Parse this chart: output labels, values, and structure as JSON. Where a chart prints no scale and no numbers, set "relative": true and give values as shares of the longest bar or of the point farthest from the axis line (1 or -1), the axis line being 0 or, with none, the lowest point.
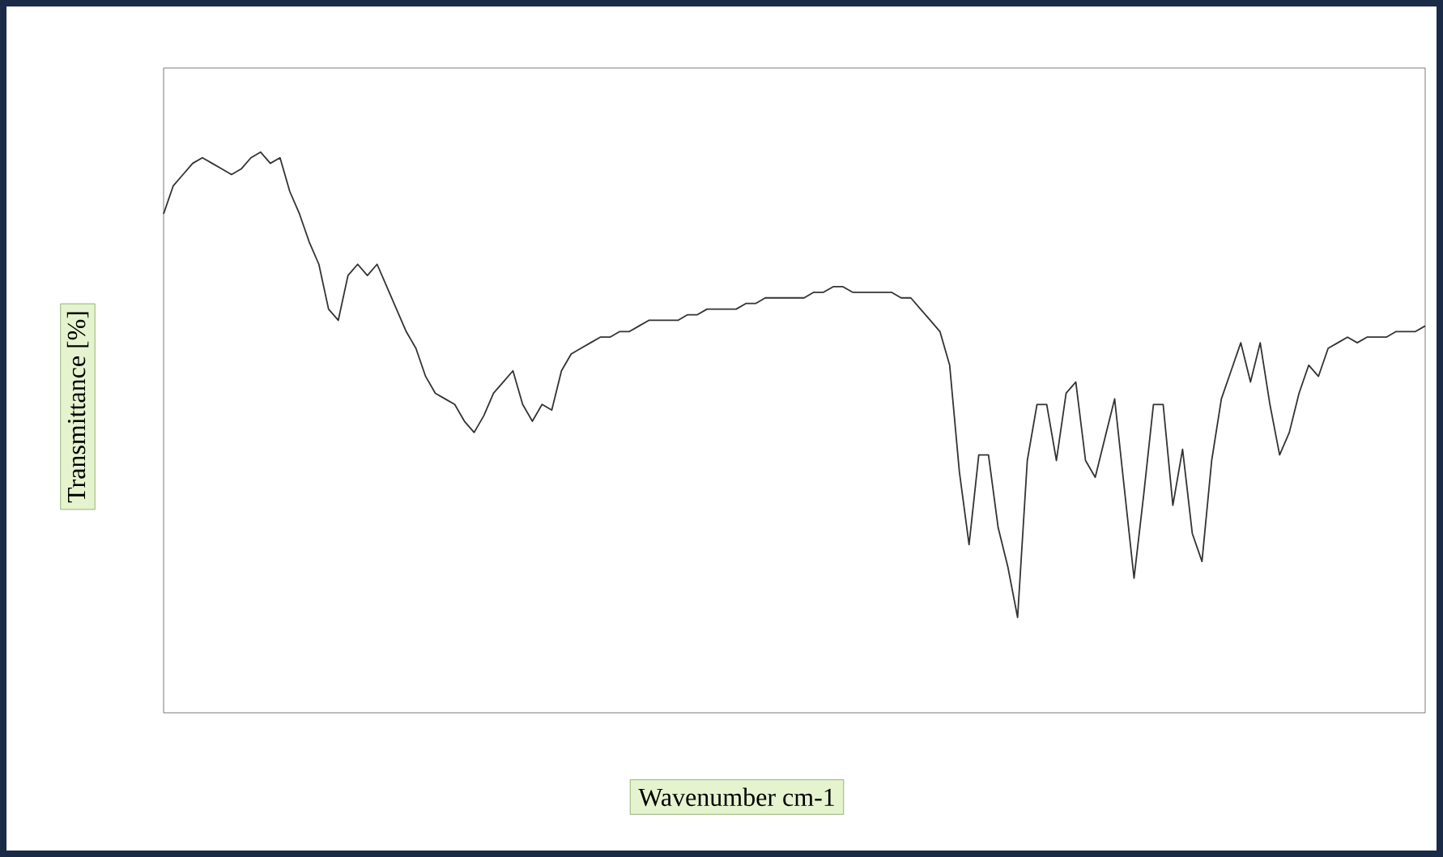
{
  "chart_data": {
    "type": "line",
    "relative": true,
    "xlabel": "Wavenumber cm-1",
    "ylabel": "Transmittance [%]",
    "color": "#333333",
    "categories": [
      null,
      null,
      null,
      null,
      null,
      null,
      null,
      null,
      null,
      null,
      null,
      null,
      null,
      null,
      null,
      null,
      null,
      null,
      null,
      null,
      null,
      null,
      null,
      null,
      null,
      null,
      null,
      null,
      null,
      null,
      null,
      null,
      null,
      null,
      null,
      null,
      null,
      null,
      null,
      null,
      null,
      null,
      null,
      null,
      null,
      null,
      null,
      null,
      null,
      null,
      null,
      null,
      null,
      null,
      null,
      null,
      null,
      null,
      null,
      null,
      null,
      null,
      null,
      null,
      null,
      null,
      null,
      null,
      null,
      null,
      null,
      null,
      null,
      null,
      null,
      null,
      null,
      null,
      null,
      null,
      null,
      null,
      null,
      null,
      null,
      null,
      null,
      null,
      null,
      null,
      null,
      null,
      null,
      null,
      null,
      null,
      null,
      null,
      null,
      null,
      null,
      null,
      null,
      null,
      null,
      null,
      null,
      null,
      null,
      null,
      null,
      null,
      null,
      null,
      null,
      null,
      null,
      null,
      null,
      null,
      null,
      null,
      null,
      null,
      null,
      null,
      null,
      null,
      null,
      null,
      null
    ],
    "values": [
      0.89,
      0.94,
      0.96,
      0.98,
      0.99,
      0.98,
      0.97,
      0.96,
      0.97,
      0.99,
      1.0,
      0.98,
      0.99,
      0.93,
      0.89,
      0.84,
      0.8,
      0.72,
      0.7,
      0.78,
      0.8,
      0.78,
      0.8,
      0.76,
      0.72,
      0.68,
      0.65,
      0.6,
      0.57,
      0.56,
      0.55,
      0.52,
      0.5,
      0.53,
      0.57,
      0.59,
      0.61,
      0.55,
      0.52,
      0.55,
      0.54,
      0.61,
      0.64,
      0.65,
      0.66,
      0.67,
      0.67,
      0.68,
      0.68,
      0.69,
      0.7,
      0.7,
      0.7,
      0.7,
      0.71,
      0.71,
      0.72,
      0.72,
      0.72,
      0.72,
      0.73,
      0.73,
      0.74,
      0.74,
      0.74,
      0.74,
      0.74,
      0.75,
      0.75,
      0.76,
      0.76,
      0.75,
      0.75,
      0.75,
      0.75,
      0.75,
      0.74,
      0.74,
      0.72,
      0.7,
      0.68,
      0.62,
      0.43,
      0.3,
      0.46,
      0.46,
      0.33,
      0.26,
      0.17,
      0.45,
      0.55,
      0.55,
      0.45,
      0.57,
      0.59,
      0.45,
      0.42,
      0.49,
      0.56,
      0.4,
      0.24,
      0.39,
      0.55,
      0.55,
      0.37,
      0.47,
      0.32,
      0.27,
      0.45,
      0.56,
      0.61,
      0.66,
      0.59,
      0.66,
      0.55,
      0.46,
      0.5,
      0.57,
      0.62,
      0.6,
      0.65,
      0.66,
      0.67,
      0.66,
      0.67,
      0.67,
      0.67,
      0.68,
      0.68,
      0.68,
      0.69
    ]
  }
}
